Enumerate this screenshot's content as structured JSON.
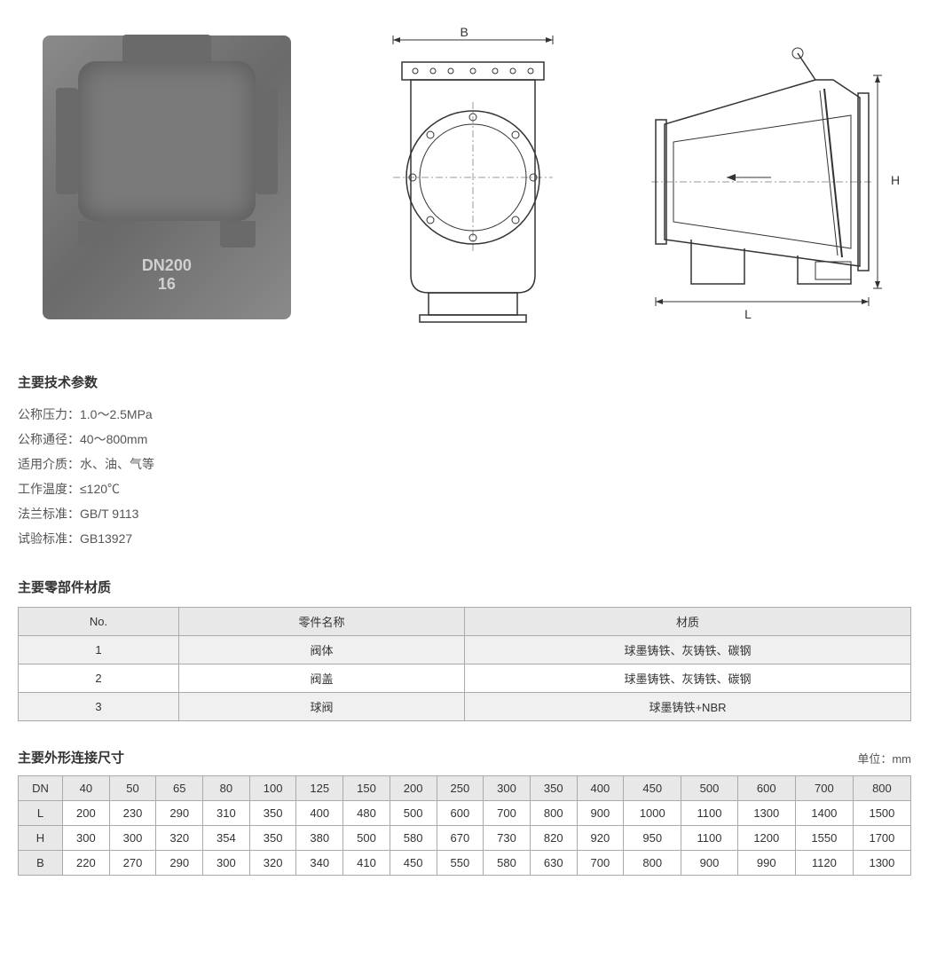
{
  "diagrams": {
    "photo_label_line1": "DN200",
    "photo_label_line2": "16",
    "dim_B": "B",
    "dim_H": "H",
    "dim_L": "L"
  },
  "tech_specs": {
    "title": "主要技术参数",
    "lines": [
      {
        "label": "公称压力：",
        "value": "1.0～2.5MPa"
      },
      {
        "label": "公称通径：",
        "value": "40～800mm"
      },
      {
        "label": "适用介质：",
        "value": "水、油、气等"
      },
      {
        "label": "工作温度：",
        "value": "≤120℃"
      },
      {
        "label": "法兰标准：",
        "value": "GB/T 9113"
      },
      {
        "label": "试验标准：",
        "value": "GB13927"
      }
    ]
  },
  "materials": {
    "title": "主要零部件材质",
    "columns": [
      "No.",
      "零件名称",
      "材质"
    ],
    "rows": [
      [
        "1",
        "阀体",
        "球墨铸铁、灰铸铁、碳钢"
      ],
      [
        "2",
        "阀盖",
        "球墨铸铁、灰铸铁、碳钢"
      ],
      [
        "3",
        "球阀",
        "球墨铸铁+NBR"
      ]
    ],
    "col_widths": [
      "18%",
      "32%",
      "50%"
    ]
  },
  "dimensions": {
    "title": "主要外形连接尺寸",
    "unit": "单位：mm",
    "header_row": [
      "DN",
      "40",
      "50",
      "65",
      "80",
      "100",
      "125",
      "150",
      "200",
      "250",
      "300",
      "350",
      "400",
      "450",
      "500",
      "600",
      "700",
      "800"
    ],
    "rows": [
      [
        "L",
        "200",
        "230",
        "290",
        "310",
        "350",
        "400",
        "480",
        "500",
        "600",
        "700",
        "800",
        "900",
        "1000",
        "1100",
        "1300",
        "1400",
        "1500"
      ],
      [
        "H",
        "300",
        "300",
        "320",
        "354",
        "350",
        "380",
        "500",
        "580",
        "670",
        "730",
        "820",
        "920",
        "950",
        "1100",
        "1200",
        "1550",
        "1700"
      ],
      [
        "B",
        "220",
        "270",
        "290",
        "300",
        "320",
        "340",
        "410",
        "450",
        "550",
        "580",
        "630",
        "700",
        "800",
        "900",
        "990",
        "1120",
        "1300"
      ]
    ]
  },
  "colors": {
    "text": "#333333",
    "text_light": "#555555",
    "border": "#aaaaaa",
    "header_bg": "#e8e8e8",
    "row_alt_bg": "#f0f0f0",
    "background": "#ffffff"
  }
}
